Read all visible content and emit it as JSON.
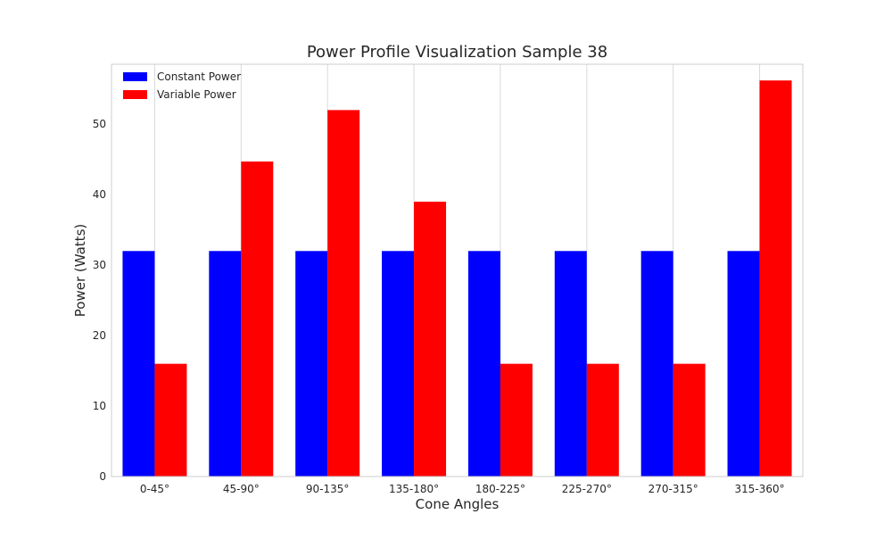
{
  "chart_data": {
    "type": "bar",
    "title": "Power Profile Visualization Sample 38",
    "xlabel": "Cone Angles",
    "ylabel": "Power (Watts)",
    "categories": [
      "0-45°",
      "45-90°",
      "90-135°",
      "135-180°",
      "180-225°",
      "225-270°",
      "270-315°",
      "315-360°"
    ],
    "series": [
      {
        "name": "Constant Power",
        "color": "#0000ff",
        "values": [
          32,
          32,
          32,
          32,
          32,
          32,
          32,
          32
        ]
      },
      {
        "name": "Variable Power",
        "color": "#ff0000",
        "values": [
          16,
          44.7,
          52,
          39,
          16,
          16,
          16,
          56.2
        ]
      }
    ],
    "ylim": [
      0,
      58.5
    ],
    "yticks": [
      0,
      10,
      20,
      30,
      40,
      50
    ],
    "grid": true,
    "legend_position": "top-left"
  }
}
